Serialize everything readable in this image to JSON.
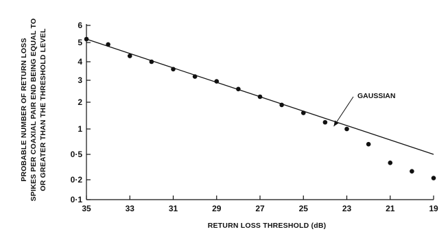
{
  "chart_data": {
    "type": "scatter",
    "title": "",
    "xlabel": "RETURN LOSS THRESHOLD (dB)",
    "ylabel_lines": [
      "PROBABLE NUMBER OF RETURN LOSS",
      "SPIKES PER COAXIAL PAIR END BEING EQUAL TO",
      "OR GREATER THAN THE THRESHOLD LEVEL"
    ],
    "x_ticks": [
      35,
      33,
      31,
      29,
      27,
      25,
      23,
      21,
      19
    ],
    "y_ticks": [
      {
        "value": 0.1,
        "label": "0·1"
      },
      {
        "value": 0.2,
        "label": "0·2"
      },
      {
        "value": 0.5,
        "label": "0·5"
      },
      {
        "value": 1,
        "label": "1"
      },
      {
        "value": 2,
        "label": "2"
      },
      {
        "value": 3,
        "label": "3"
      },
      {
        "value": 4,
        "label": "4"
      },
      {
        "value": 5,
        "label": "5"
      },
      {
        "value": 6,
        "label": "6"
      }
    ],
    "xlim": [
      35,
      19
    ],
    "ylim": [
      0.1,
      6
    ],
    "x_reversed": true,
    "y_scale": "gaussian-probability",
    "grid": false,
    "points": {
      "x": [
        35,
        34,
        33,
        32,
        31,
        30,
        29,
        28,
        27,
        26,
        25,
        24,
        23,
        22,
        21,
        20,
        19
      ],
      "y": [
        5.2,
        4.9,
        4.3,
        4.0,
        3.6,
        3.2,
        2.95,
        2.6,
        2.25,
        1.9,
        1.6,
        1.25,
        1.0,
        0.7,
        0.4,
        0.3,
        0.22
      ]
    },
    "fit_line": {
      "name": "GAUSSIAN",
      "x": [
        35,
        19
      ],
      "y": [
        5.2,
        0.5
      ]
    },
    "annotations": [
      {
        "text": "GAUSSIAN",
        "points_to": {
          "x": 23.6,
          "y": 1.1
        }
      }
    ]
  }
}
